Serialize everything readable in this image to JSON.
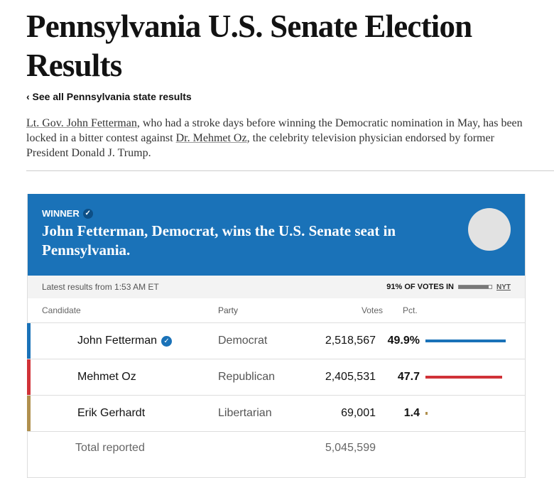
{
  "title": "Pennsylvania U.S. Senate Election Results",
  "back_link": "‹ See all Pennsylvania state results",
  "intro": {
    "link1": "Lt. Gov. John Fetterman",
    "text1": ", who had a stroke days before winning the Democratic nomination in May, has been locked in a bitter contest against ",
    "link2": "Dr. Mehmet Oz",
    "text2": ", the celebrity television physician endorsed by former President Donald J. Trump."
  },
  "winner": {
    "label": "WINNER",
    "headline": "John Fetterman, Democrat, wins the U.S. Senate seat in Pennsylvania."
  },
  "meta": {
    "latest": "Latest results from 1:53 AM ET",
    "votes_in": "91% OF VOTES IN",
    "votes_in_pct": 91,
    "source": "NYT"
  },
  "columns": {
    "candidate": "Candidate",
    "party": "Party",
    "votes": "Votes",
    "pct": "Pct."
  },
  "rows": [
    {
      "name": "John Fetterman",
      "winner": true,
      "party": "Democrat",
      "votes": "2,518,567",
      "pct": "49.9%",
      "pct_value": 49.9,
      "color": "#1a72b8"
    },
    {
      "name": "Mehmet Oz",
      "winner": false,
      "party": "Republican",
      "votes": "2,405,531",
      "pct": "47.7",
      "pct_value": 47.7,
      "color": "#d03238"
    },
    {
      "name": "Erik Gerhardt",
      "winner": false,
      "party": "Libertarian",
      "votes": "69,001",
      "pct": "1.4",
      "pct_value": 1.4,
      "color": "#b0904e"
    }
  ],
  "total": {
    "label": "Total reported",
    "votes": "5,045,599"
  }
}
